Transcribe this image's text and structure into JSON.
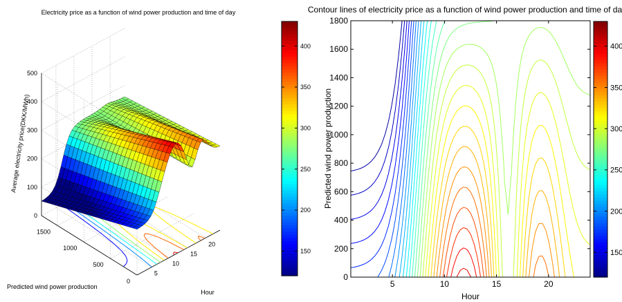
{
  "chart_data": [
    {
      "type": "surface",
      "title": "Electricity price as a function of wind power production and time of day",
      "xlabel": "Hour",
      "ylabel": "Predicted wind power production",
      "zlabel": "Average electricity price(DKK/MWh)",
      "x_ticks": [
        5,
        10,
        15,
        20
      ],
      "y_ticks": [
        0,
        500,
        1000,
        1500
      ],
      "z_ticks": [
        0,
        100,
        200,
        300,
        400,
        500
      ],
      "xlim": [
        1,
        24
      ],
      "ylim": [
        0,
        1800
      ],
      "zlim": [
        0,
        500
      ],
      "colorbar": {
        "min": 120,
        "max": 430,
        "ticks": [
          150,
          200,
          250,
          300,
          350,
          400
        ]
      },
      "colormap": "jet",
      "grid": true
    },
    {
      "type": "contour",
      "title": "Contour lines of electricity price as a function of wind power production and time of day",
      "xlabel": "Hour",
      "ylabel": "Predicted wind power production",
      "x_ticks": [
        5,
        10,
        15,
        20
      ],
      "y_ticks": [
        0,
        200,
        400,
        600,
        800,
        1000,
        1200,
        1400,
        1600,
        1800
      ],
      "xlim": [
        1,
        24
      ],
      "ylim": [
        0,
        1800
      ],
      "colorbar": {
        "min": 120,
        "max": 430,
        "ticks": [
          150,
          200,
          250,
          300,
          350,
          400
        ]
      },
      "colormap": "jet",
      "levels": 30
    }
  ]
}
